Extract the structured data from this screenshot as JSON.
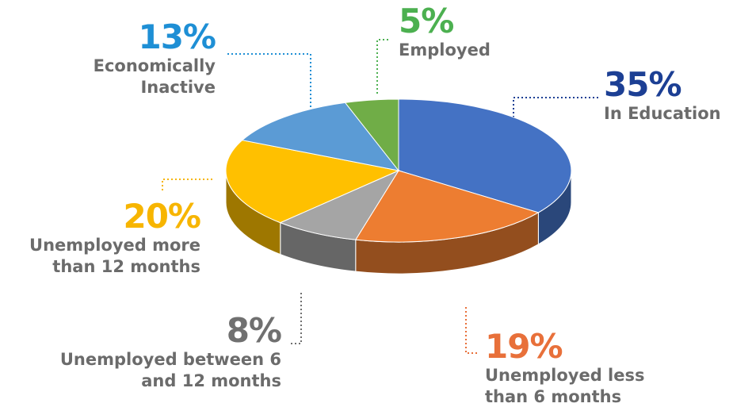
{
  "chart_data": {
    "type": "pie",
    "categories": [
      "In Education",
      "Unemployed less than 6 months",
      "Unemployed between 6 and 12 months",
      "Unemployed more than 12 months",
      "Economically Inactive",
      "Employed"
    ],
    "values": [
      35,
      19,
      8,
      20,
      13,
      5
    ],
    "value_labels": [
      "35%",
      "19%",
      "8%",
      "20%",
      "13%",
      "5%"
    ],
    "colors": [
      "#4472c4",
      "#ed7d31",
      "#a5a5a5",
      "#ffc000",
      "#5b9bd5",
      "#70ad47"
    ],
    "label_colors": [
      "#1c3f94",
      "#e8703a",
      "#707070",
      "#f7b500",
      "#1e8fd5",
      "#4cb050"
    ]
  }
}
